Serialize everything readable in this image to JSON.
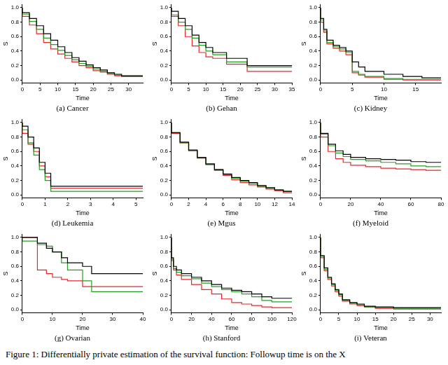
{
  "caption": "Figure 1: Differentially private estimation of the survival function: Followup time is on the X",
  "chart_data": [
    {
      "type": "line",
      "title": "(a) Cancer",
      "x_label": "Time",
      "y_label": "S",
      "grid": false,
      "line_style": "step",
      "xlim": [
        0,
        34
      ],
      "xticks": [
        0,
        5,
        10,
        15,
        20,
        25,
        30
      ],
      "ylim": [
        -0.04,
        1.04
      ],
      "yticks": [
        {
          "value": 0,
          "label": "0.0"
        },
        {
          "value": 0.2,
          "label": "0.2"
        },
        {
          "value": 0.4,
          "label": "0.4"
        },
        {
          "value": 0.6,
          "label": "0.6"
        },
        {
          "value": 0.8,
          "label": "0.8"
        },
        {
          "value": 1,
          "label": "1.0"
        }
      ],
      "x": [
        0,
        2,
        4,
        6,
        8,
        10,
        12,
        14,
        16,
        18,
        20,
        22,
        24,
        26,
        28,
        30,
        34
      ],
      "series": [
        {
          "color": "#000000",
          "values": [
            1,
            0.93,
            0.85,
            0.75,
            0.64,
            0.55,
            0.46,
            0.38,
            0.31,
            0.26,
            0.21,
            0.17,
            0.14,
            0.1,
            0.08,
            0.06,
            0.06
          ]
        },
        {
          "color": "#22a022",
          "values": [
            1,
            0.91,
            0.81,
            0.7,
            0.58,
            0.49,
            0.41,
            0.34,
            0.28,
            0.23,
            0.19,
            0.15,
            0.12,
            0.09,
            0.07,
            0.05,
            0.05
          ]
        },
        {
          "color": "#e8262a",
          "values": [
            1,
            0.88,
            0.76,
            0.64,
            0.52,
            0.43,
            0.36,
            0.3,
            0.25,
            0.2,
            0.17,
            0.13,
            0.11,
            0.08,
            0.06,
            0.05,
            0.05
          ]
        }
      ]
    },
    {
      "type": "line",
      "title": "(b) Gehan",
      "x_label": "Time",
      "y_label": "S",
      "grid": false,
      "line_style": "step",
      "xlim": [
        0,
        35
      ],
      "xticks": [
        0,
        5,
        10,
        15,
        20,
        25,
        30,
        35
      ],
      "ylim": [
        -0.04,
        1.04
      ],
      "yticks": [
        {
          "value": 0,
          "label": "0.0"
        },
        {
          "value": 0.2,
          "label": "0.2"
        },
        {
          "value": 0.4,
          "label": "0.4"
        },
        {
          "value": 0.6,
          "label": "0.6"
        },
        {
          "value": 0.8,
          "label": "0.8"
        },
        {
          "value": 1,
          "label": "1.0"
        }
      ],
      "x": [
        0,
        2,
        4,
        6,
        8,
        10,
        12,
        16,
        22,
        23,
        28,
        35
      ],
      "series": [
        {
          "color": "#000000",
          "values": [
            1,
            0.95,
            0.85,
            0.75,
            0.62,
            0.52,
            0.45,
            0.38,
            0.3,
            0.2,
            0.2,
            0.2
          ]
        },
        {
          "color": "#22a022",
          "values": [
            1,
            0.9,
            0.8,
            0.7,
            0.58,
            0.48,
            0.4,
            0.35,
            0.25,
            0.18,
            0.18,
            0.18
          ]
        },
        {
          "color": "#e8262a",
          "values": [
            1,
            0.88,
            0.75,
            0.6,
            0.47,
            0.38,
            0.32,
            0.3,
            0.22,
            0.12,
            0.12,
            0.12
          ]
        }
      ]
    },
    {
      "type": "line",
      "title": "(c) Kidney",
      "x_label": "Time",
      "y_label": "S",
      "grid": false,
      "line_style": "step",
      "xlim": [
        0,
        19
      ],
      "xticks": [
        0,
        5,
        10,
        15
      ],
      "ylim": [
        -0.04,
        1.04
      ],
      "yticks": [
        {
          "value": 0,
          "label": "0.0"
        },
        {
          "value": 0.2,
          "label": "0.2"
        },
        {
          "value": 0.4,
          "label": "0.4"
        },
        {
          "value": 0.6,
          "label": "0.6"
        },
        {
          "value": 0.8,
          "label": "0.8"
        },
        {
          "value": 1,
          "label": "1.0"
        }
      ],
      "x": [
        0,
        0.5,
        1,
        2,
        3,
        4,
        5,
        6,
        7,
        10,
        13,
        16,
        19
      ],
      "series": [
        {
          "color": "#000000",
          "values": [
            1,
            0.85,
            0.7,
            0.55,
            0.48,
            0.45,
            0.4,
            0.25,
            0.18,
            0.12,
            0.08,
            0.05,
            0.03
          ]
        },
        {
          "color": "#22a022",
          "values": [
            1,
            0.83,
            0.68,
            0.52,
            0.46,
            0.43,
            0.38,
            0.12,
            0.08,
            0.05,
            0.02,
            0.01,
            0.01
          ]
        },
        {
          "color": "#e8262a",
          "values": [
            1,
            0.8,
            0.66,
            0.5,
            0.44,
            0.4,
            0.35,
            0.1,
            0.07,
            0.04,
            0.01,
            0,
            0
          ]
        }
      ]
    },
    {
      "type": "line",
      "title": "(d) Leukemia",
      "x_label": "Time",
      "y_label": "S",
      "grid": false,
      "line_style": "step",
      "xlim": [
        0,
        5.3
      ],
      "xticks": [
        0,
        1,
        2,
        3,
        4,
        5
      ],
      "ylim": [
        -0.04,
        1.04
      ],
      "yticks": [
        {
          "value": 0,
          "label": "0.0"
        },
        {
          "value": 0.2,
          "label": "0.2"
        },
        {
          "value": 0.4,
          "label": "0.4"
        },
        {
          "value": 0.6,
          "label": "0.6"
        },
        {
          "value": 0.8,
          "label": "0.8"
        },
        {
          "value": 1,
          "label": "1.0"
        }
      ],
      "x": [
        0,
        0.25,
        0.5,
        0.75,
        1,
        1.25,
        1.5,
        2,
        5.3
      ],
      "series": [
        {
          "color": "#000000",
          "values": [
            1,
            0.95,
            0.8,
            0.65,
            0.45,
            0.3,
            0.12,
            0.12,
            0.12
          ]
        },
        {
          "color": "#22a022",
          "values": [
            1,
            0.9,
            0.72,
            0.55,
            0.35,
            0.2,
            0.05,
            0.05,
            0.05
          ]
        },
        {
          "color": "#e8262a",
          "values": [
            1,
            0.85,
            0.7,
            0.6,
            0.4,
            0.25,
            0.09,
            0.09,
            0.09
          ]
        }
      ]
    },
    {
      "type": "line",
      "title": "(e) Mgus",
      "x_label": "Time",
      "y_label": "S",
      "grid": false,
      "line_style": "step",
      "xlim": [
        0,
        14
      ],
      "xticks": [
        0,
        2,
        4,
        6,
        8,
        10,
        12,
        14
      ],
      "ylim": [
        -0.04,
        1.04
      ],
      "yticks": [
        {
          "value": 0,
          "label": "0.0"
        },
        {
          "value": 0.2,
          "label": "0.2"
        },
        {
          "value": 0.4,
          "label": "0.4"
        },
        {
          "value": 0.6,
          "label": "0.6"
        },
        {
          "value": 0.8,
          "label": "0.8"
        },
        {
          "value": 1,
          "label": "1.0"
        }
      ],
      "x": [
        0,
        1,
        2,
        3,
        4,
        5,
        6,
        7,
        8,
        9,
        10,
        11,
        12,
        13,
        14
      ],
      "series": [
        {
          "color": "#000000",
          "values": [
            1,
            0.86,
            0.73,
            0.62,
            0.52,
            0.43,
            0.35,
            0.29,
            0.24,
            0.2,
            0.17,
            0.13,
            0.1,
            0.07,
            0.05
          ]
        },
        {
          "color": "#22a022",
          "values": [
            1,
            0.86,
            0.72,
            0.61,
            0.51,
            0.42,
            0.35,
            0.28,
            0.23,
            0.19,
            0.16,
            0.12,
            0.09,
            0.07,
            0.05
          ]
        },
        {
          "color": "#e8262a",
          "values": [
            1,
            0.85,
            0.72,
            0.61,
            0.51,
            0.42,
            0.34,
            0.27,
            0.21,
            0.17,
            0.14,
            0.11,
            0.08,
            0.06,
            0.03
          ]
        }
      ]
    },
    {
      "type": "line",
      "title": "(f) Myeloid",
      "x_label": "Time",
      "y_label": "S",
      "grid": false,
      "line_style": "step",
      "xlim": [
        0,
        80
      ],
      "xticks": [
        0,
        20,
        40,
        60,
        80
      ],
      "ylim": [
        -0.04,
        1.04
      ],
      "yticks": [
        {
          "value": 0,
          "label": "0.0"
        },
        {
          "value": 0.2,
          "label": "0.2"
        },
        {
          "value": 0.4,
          "label": "0.4"
        },
        {
          "value": 0.6,
          "label": "0.6"
        },
        {
          "value": 0.8,
          "label": "0.8"
        },
        {
          "value": 1,
          "label": "1.0"
        }
      ],
      "x": [
        0,
        5,
        10,
        15,
        20,
        30,
        40,
        50,
        60,
        70,
        80
      ],
      "series": [
        {
          "color": "#000000",
          "values": [
            1,
            0.85,
            0.7,
            0.61,
            0.56,
            0.52,
            0.5,
            0.49,
            0.48,
            0.46,
            0.45
          ]
        },
        {
          "color": "#22a022",
          "values": [
            1,
            0.84,
            0.68,
            0.58,
            0.53,
            0.49,
            0.47,
            0.45,
            0.43,
            0.4,
            0.39
          ]
        },
        {
          "color": "#e8262a",
          "values": [
            1,
            0.8,
            0.6,
            0.5,
            0.45,
            0.41,
            0.39,
            0.37,
            0.36,
            0.35,
            0.34
          ]
        }
      ]
    },
    {
      "type": "line",
      "title": "(g) Ovarian",
      "x_label": "Time",
      "y_label": "S",
      "grid": false,
      "line_style": "step",
      "xlim": [
        0,
        40
      ],
      "xticks": [
        0,
        10,
        20,
        30,
        40
      ],
      "ylim": [
        -0.04,
        1.04
      ],
      "yticks": [
        {
          "value": 0,
          "label": "0.0"
        },
        {
          "value": 0.2,
          "label": "0.2"
        },
        {
          "value": 0.4,
          "label": "0.4"
        },
        {
          "value": 0.6,
          "label": "0.6"
        },
        {
          "value": 0.8,
          "label": "0.8"
        },
        {
          "value": 1,
          "label": "1.0"
        }
      ],
      "x": [
        0,
        5,
        8,
        10,
        13,
        15,
        20,
        23,
        25,
        30,
        40
      ],
      "series": [
        {
          "color": "#000000",
          "values": [
            1,
            1,
            0.92,
            0.85,
            0.8,
            0.72,
            0.65,
            0.6,
            0.5,
            0.5,
            0.5
          ]
        },
        {
          "color": "#22a022",
          "values": [
            1,
            0.95,
            0.9,
            0.88,
            0.8,
            0.65,
            0.55,
            0.4,
            0.25,
            0.25,
            0.25
          ]
        },
        {
          "color": "#e8262a",
          "values": [
            1,
            1,
            0.55,
            0.5,
            0.45,
            0.42,
            0.4,
            0.32,
            0.32,
            0.32,
            0.32
          ]
        }
      ]
    },
    {
      "type": "line",
      "title": "(h) Stanford",
      "x_label": "Time",
      "y_label": "S",
      "grid": false,
      "line_style": "step",
      "xlim": [
        0,
        120
      ],
      "xticks": [
        0,
        20,
        40,
        60,
        80,
        100,
        120
      ],
      "ylim": [
        -0.04,
        1.04
      ],
      "yticks": [
        {
          "value": 0,
          "label": "0.0"
        },
        {
          "value": 0.2,
          "label": "0.2"
        },
        {
          "value": 0.4,
          "label": "0.4"
        },
        {
          "value": 0.6,
          "label": "0.6"
        },
        {
          "value": 0.8,
          "label": "0.8"
        },
        {
          "value": 1,
          "label": "1.0"
        }
      ],
      "x": [
        0,
        2,
        5,
        10,
        20,
        30,
        40,
        50,
        60,
        70,
        80,
        90,
        100,
        110,
        120
      ],
      "series": [
        {
          "color": "#000000",
          "values": [
            1,
            0.72,
            0.6,
            0.55,
            0.5,
            0.45,
            0.4,
            0.35,
            0.3,
            0.27,
            0.25,
            0.22,
            0.18,
            0.16,
            0.16
          ]
        },
        {
          "color": "#22a022",
          "values": [
            1,
            0.7,
            0.57,
            0.52,
            0.47,
            0.43,
            0.37,
            0.32,
            0.28,
            0.25,
            0.22,
            0.18,
            0.13,
            0.11,
            0.11
          ]
        },
        {
          "color": "#e8262a",
          "values": [
            1,
            0.68,
            0.55,
            0.48,
            0.42,
            0.35,
            0.28,
            0.22,
            0.15,
            0.1,
            0.08,
            0.06,
            0.04,
            0.03,
            0.03
          ]
        }
      ]
    },
    {
      "type": "line",
      "title": "(i) Veteran",
      "x_label": "Time",
      "y_label": "S",
      "grid": false,
      "line_style": "step",
      "xlim": [
        0,
        33
      ],
      "xticks": [
        0,
        5,
        10,
        15,
        20,
        25,
        30
      ],
      "ylim": [
        -0.04,
        1.04
      ],
      "yticks": [
        {
          "value": 0,
          "label": "0.0"
        },
        {
          "value": 0.2,
          "label": "0.2"
        },
        {
          "value": 0.4,
          "label": "0.4"
        },
        {
          "value": 0.6,
          "label": "0.6"
        },
        {
          "value": 0.8,
          "label": "0.8"
        },
        {
          "value": 1,
          "label": "1.0"
        }
      ],
      "x": [
        0,
        1,
        2,
        3,
        4,
        5,
        6,
        8,
        10,
        12,
        15,
        20,
        25,
        30,
        33
      ],
      "series": [
        {
          "color": "#000000",
          "values": [
            1,
            0.75,
            0.58,
            0.45,
            0.36,
            0.28,
            0.22,
            0.14,
            0.1,
            0.08,
            0.05,
            0.04,
            0.03,
            0.03,
            0.03
          ]
        },
        {
          "color": "#22a022",
          "values": [
            1,
            0.74,
            0.56,
            0.44,
            0.35,
            0.27,
            0.21,
            0.13,
            0.09,
            0.07,
            0.04,
            0.03,
            0.02,
            0.02,
            0.02
          ]
        },
        {
          "color": "#e8262a",
          "values": [
            1,
            0.72,
            0.54,
            0.42,
            0.33,
            0.25,
            0.19,
            0.12,
            0.08,
            0.06,
            0.04,
            0.02,
            0.01,
            0.01,
            0.01
          ]
        }
      ]
    }
  ]
}
